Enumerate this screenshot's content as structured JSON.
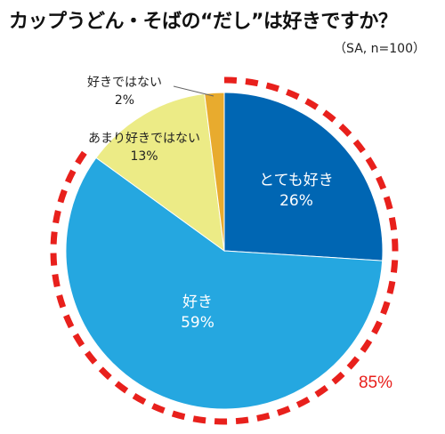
{
  "chart_data": {
    "type": "pie",
    "title": "カップうどん・そばの“だし”は好きですか？",
    "note": "（SA, n=100）",
    "slices": [
      {
        "label": "とても好き",
        "value": 26,
        "value_label": "26%",
        "color": "#0066b3",
        "label_color": "#ffffff"
      },
      {
        "label": "好き",
        "value": 59,
        "value_label": "59%",
        "color": "#25a7e0",
        "label_color": "#ffffff"
      },
      {
        "label": "あまり好きではない",
        "value": 13,
        "value_label": "13%",
        "color": "#eceb86",
        "label_color": "#222222"
      },
      {
        "label": "好きではない",
        "value": 2,
        "value_label": "2%",
        "color": "#e8ab2e",
        "label_color": "#222222"
      }
    ],
    "highlight": {
      "value_label": "85%",
      "color": "#e8201c",
      "covers": [
        "とても好き",
        "好き"
      ]
    },
    "start_angle": "12 o'clock",
    "direction": "clockwise"
  }
}
